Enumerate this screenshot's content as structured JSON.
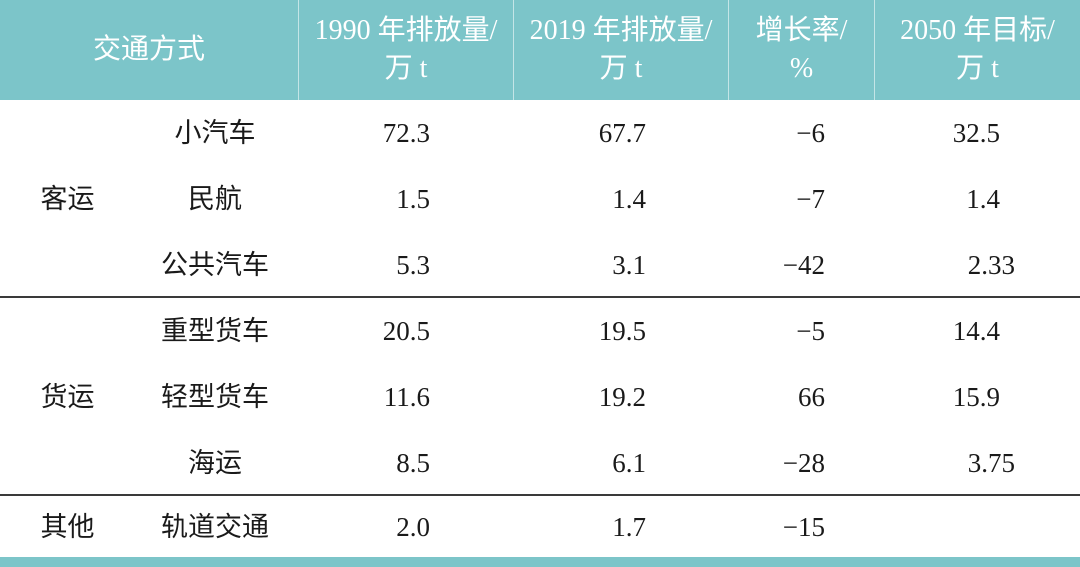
{
  "header": {
    "mode": "交通方式",
    "e1990": [
      "1990 年排放量/",
      "万 t"
    ],
    "e2019": [
      "2019 年排放量/",
      "万 t"
    ],
    "growth": [
      "增长率/",
      "%"
    ],
    "t2050": [
      "2050 年目标/",
      "万 t"
    ]
  },
  "groups": [
    {
      "label": "客运",
      "rows": [
        {
          "mode": "小汽车",
          "e1990": "72.3",
          "e2019": "67.7",
          "growth": "−6",
          "t2050": "32.5"
        },
        {
          "mode": "民航",
          "e1990": "1.5",
          "e2019": "1.4",
          "growth": "−7",
          "t2050": "1.4"
        },
        {
          "mode": "公共汽车",
          "e1990": "5.3",
          "e2019": "3.1",
          "growth": "−42",
          "t2050": "2.33"
        }
      ]
    },
    {
      "label": "货运",
      "rows": [
        {
          "mode": "重型货车",
          "e1990": "20.5",
          "e2019": "19.5",
          "growth": "−5",
          "t2050": "14.4"
        },
        {
          "mode": "轻型货车",
          "e1990": "11.6",
          "e2019": "19.2",
          "growth": "66",
          "t2050": "15.9"
        },
        {
          "mode": "海运",
          "e1990": "8.5",
          "e2019": "6.1",
          "growth": "−28",
          "t2050": "3.75"
        }
      ]
    },
    {
      "label": "其他",
      "rows": [
        {
          "mode": "轨道交通",
          "e1990": "2.0",
          "e2019": "1.7",
          "growth": "−15",
          "t2050": ""
        }
      ]
    }
  ]
}
